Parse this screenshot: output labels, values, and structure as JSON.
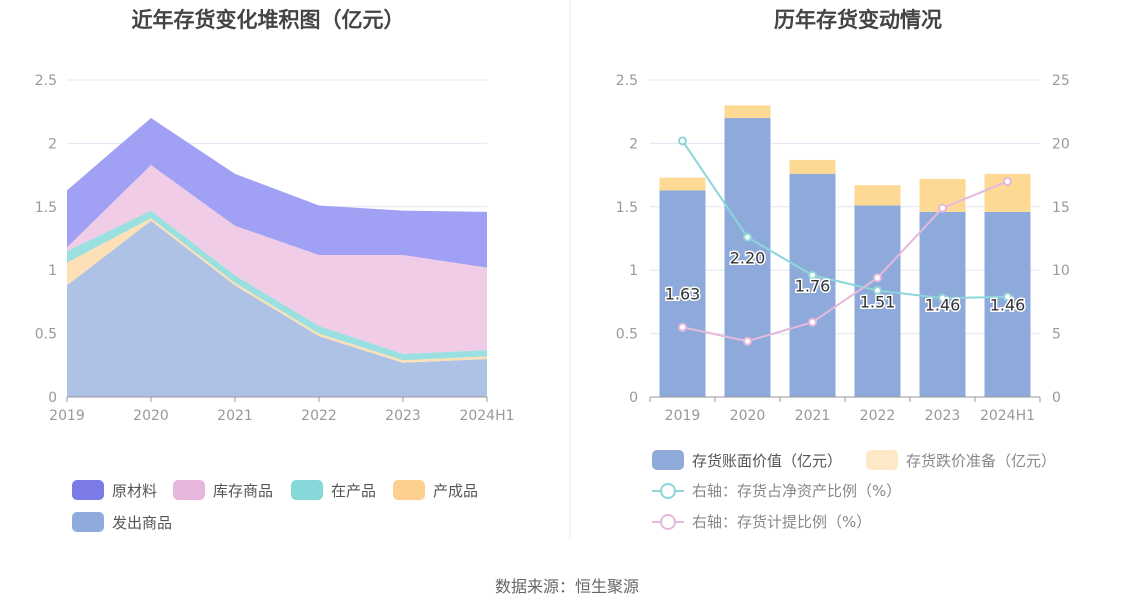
{
  "source_text": "数据来源：恒生聚源",
  "chart_data": [
    {
      "type": "area",
      "stacked": true,
      "title": "近年存货变化堆积图（亿元）",
      "categories": [
        "2019",
        "2020",
        "2021",
        "2022",
        "2023",
        "2024H1"
      ],
      "ylim": [
        0,
        2.5
      ],
      "yticks": [
        "0",
        "0.5",
        "1",
        "1.5",
        "2",
        "2.5"
      ],
      "grid": true,
      "legend_position": "bottom",
      "series": [
        {
          "name": "发出商品",
          "color": "#adc2e4",
          "values": [
            0.88,
            1.39,
            0.88,
            0.48,
            0.27,
            0.3
          ]
        },
        {
          "name": "产成品",
          "color": "#fde0b5",
          "values": [
            0.18,
            0.02,
            0.02,
            0.02,
            0.02,
            0.02
          ]
        },
        {
          "name": "在产品",
          "color": "#9ae0e0",
          "values": [
            0.09,
            0.06,
            0.06,
            0.06,
            0.05,
            0.05
          ]
        },
        {
          "name": "库存商品",
          "color": "#f0cce6",
          "values": [
            0.03,
            0.36,
            0.39,
            0.56,
            0.78,
            0.65
          ]
        },
        {
          "name": "原材料",
          "color": "#a0a0f5",
          "values": [
            0.45,
            0.37,
            0.41,
            0.39,
            0.35,
            0.44
          ]
        }
      ],
      "legend": [
        {
          "name": "原材料",
          "color": "#7b7be8"
        },
        {
          "name": "库存商品",
          "color": "#e8b8dc"
        },
        {
          "name": "在产品",
          "color": "#86d8d8"
        },
        {
          "name": "产成品",
          "color": "#fdd08f"
        },
        {
          "name": "发出商品",
          "color": "#8eaadb"
        }
      ]
    },
    {
      "type": "bar",
      "stacked": true,
      "title": "历年存货变动情况",
      "categories": [
        "2019",
        "2020",
        "2021",
        "2022",
        "2023",
        "2024H1"
      ],
      "ylim": [
        0,
        2.5
      ],
      "yticks": [
        "0",
        "0.5",
        "1",
        "1.5",
        "2",
        "2.5"
      ],
      "y2lim": [
        0,
        25
      ],
      "y2ticks": [
        "0",
        "5",
        "10",
        "15",
        "20",
        "25"
      ],
      "grid": true,
      "legend_position": "bottom",
      "bar_series": [
        {
          "name": "存货账面价值（亿元）",
          "color": "#8eaadb",
          "values": [
            1.63,
            2.2,
            1.76,
            1.51,
            1.46,
            1.46
          ],
          "labels": [
            "1.63",
            "2.20",
            "1.76",
            "1.51",
            "1.46",
            "1.46"
          ]
        },
        {
          "name": "存货跌价准备（亿元）",
          "color": "#fdd993",
          "legend_color": "#fde8c8",
          "values": [
            0.1,
            0.1,
            0.11,
            0.16,
            0.26,
            0.3
          ]
        }
      ],
      "line_series": [
        {
          "name": "右轴：存货占净资产比例（%）",
          "color": "#8dd5d8",
          "values": [
            20.2,
            12.6,
            9.6,
            8.4,
            7.8,
            7.9
          ]
        },
        {
          "name": "右轴：存货计提比例（%）",
          "color": "#e5b9dc",
          "values": [
            5.5,
            4.4,
            5.9,
            9.4,
            14.9,
            17.0
          ]
        }
      ]
    }
  ]
}
